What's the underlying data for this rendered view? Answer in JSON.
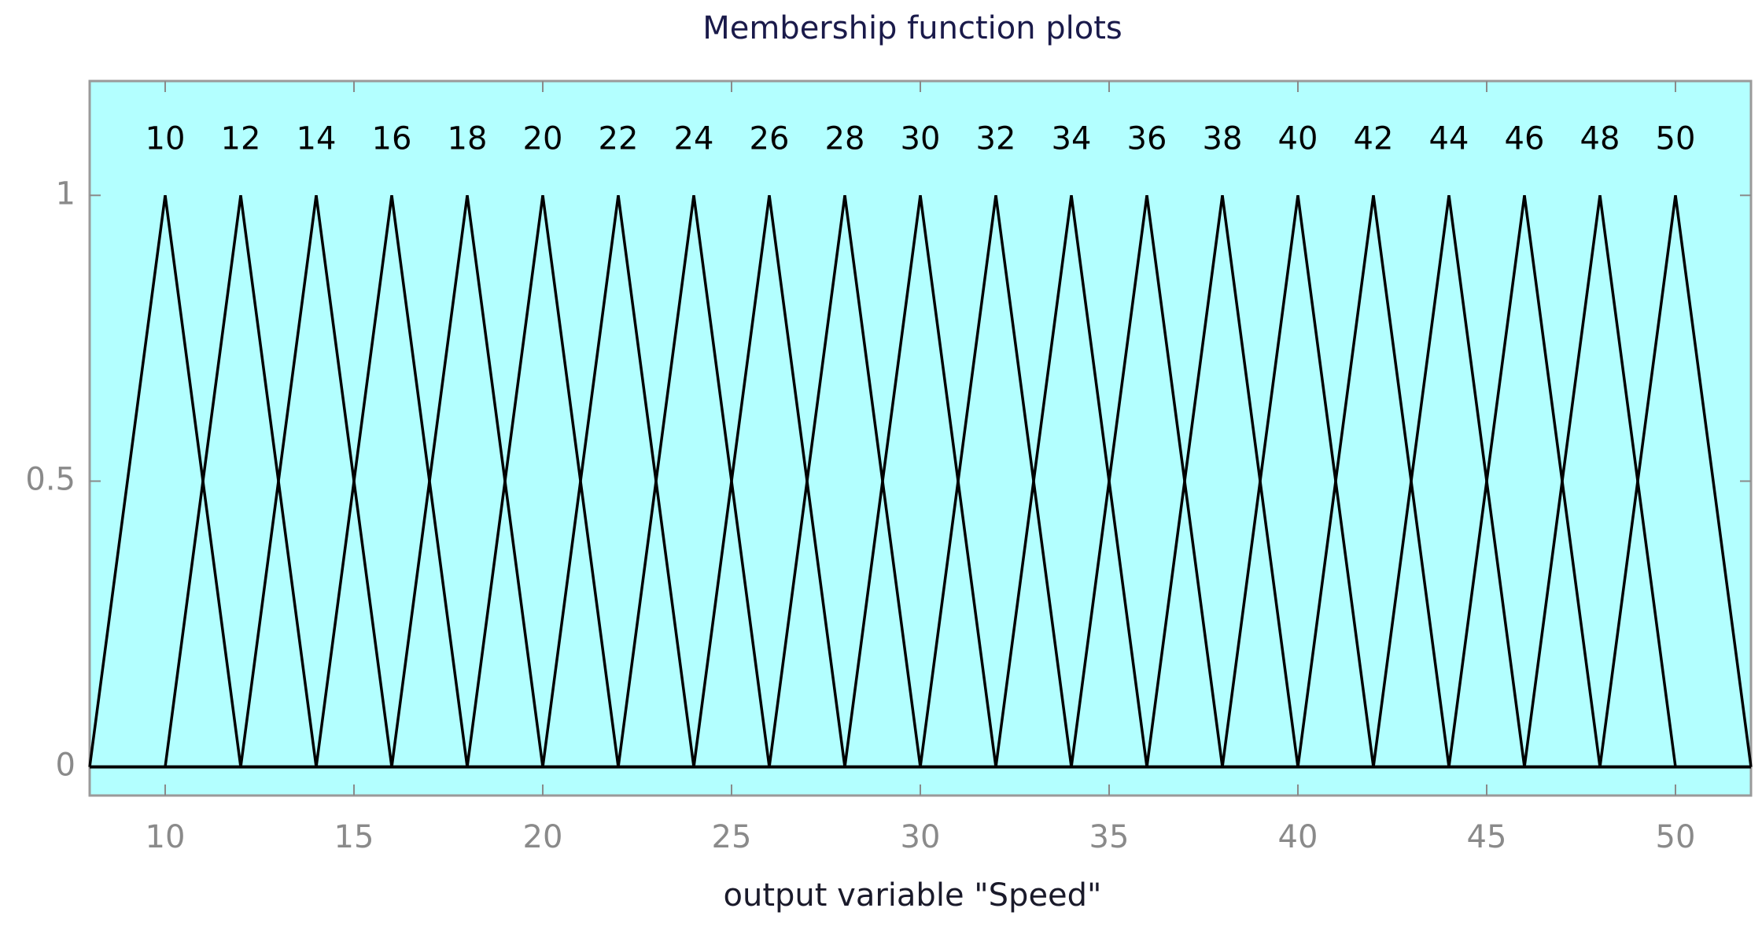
{
  "chart_data": {
    "type": "line",
    "title": "Membership function plots",
    "xlabel": "output variable \"Speed\"",
    "xlim": [
      8,
      52
    ],
    "ylim": [
      -0.05,
      1.2
    ],
    "xticks": [
      10,
      15,
      20,
      25,
      30,
      35,
      40,
      45,
      50
    ],
    "yticks": [
      0,
      0.5,
      1
    ],
    "grid": false,
    "background": "#b3ffff",
    "series": [
      {
        "name": "10",
        "color": "#000000",
        "x": [
          8,
          10,
          12
        ],
        "values": [
          0,
          1,
          0
        ]
      },
      {
        "name": "12",
        "color": "#000000",
        "x": [
          10,
          12,
          14
        ],
        "values": [
          0,
          1,
          0
        ]
      },
      {
        "name": "14",
        "color": "#000000",
        "x": [
          12,
          14,
          16
        ],
        "values": [
          0,
          1,
          0
        ]
      },
      {
        "name": "16",
        "color": "#000000",
        "x": [
          14,
          16,
          18
        ],
        "values": [
          0,
          1,
          0
        ]
      },
      {
        "name": "18",
        "color": "#000000",
        "x": [
          16,
          18,
          20
        ],
        "values": [
          0,
          1,
          0
        ]
      },
      {
        "name": "20",
        "color": "#000000",
        "x": [
          18,
          20,
          22
        ],
        "values": [
          0,
          1,
          0
        ]
      },
      {
        "name": "22",
        "color": "#000000",
        "x": [
          20,
          22,
          24
        ],
        "values": [
          0,
          1,
          0
        ]
      },
      {
        "name": "24",
        "color": "#000000",
        "x": [
          22,
          24,
          26
        ],
        "values": [
          0,
          1,
          0
        ]
      },
      {
        "name": "26",
        "color": "#000000",
        "x": [
          24,
          26,
          28
        ],
        "values": [
          0,
          1,
          0
        ]
      },
      {
        "name": "28",
        "color": "#000000",
        "x": [
          26,
          28,
          30
        ],
        "values": [
          0,
          1,
          0
        ]
      },
      {
        "name": "30",
        "color": "#000000",
        "x": [
          28,
          30,
          32
        ],
        "values": [
          0,
          1,
          0
        ]
      },
      {
        "name": "32",
        "color": "#000000",
        "x": [
          30,
          32,
          34
        ],
        "values": [
          0,
          1,
          0
        ]
      },
      {
        "name": "34",
        "color": "#000000",
        "x": [
          32,
          34,
          36
        ],
        "values": [
          0,
          1,
          0
        ]
      },
      {
        "name": "36",
        "color": "#000000",
        "x": [
          34,
          36,
          38
        ],
        "values": [
          0,
          1,
          0
        ]
      },
      {
        "name": "38",
        "color": "#000000",
        "x": [
          36,
          38,
          40
        ],
        "values": [
          0,
          1,
          0
        ]
      },
      {
        "name": "40",
        "color": "#000000",
        "x": [
          38,
          40,
          42
        ],
        "values": [
          0,
          1,
          0
        ]
      },
      {
        "name": "42",
        "color": "#000000",
        "x": [
          40,
          42,
          44
        ],
        "values": [
          0,
          1,
          0
        ]
      },
      {
        "name": "44",
        "color": "#000000",
        "x": [
          42,
          44,
          46
        ],
        "values": [
          0,
          1,
          0
        ]
      },
      {
        "name": "46",
        "color": "#000000",
        "x": [
          44,
          46,
          48
        ],
        "values": [
          0,
          1,
          0
        ]
      },
      {
        "name": "48",
        "color": "#000000",
        "x": [
          46,
          48,
          50
        ],
        "values": [
          0,
          1,
          0
        ]
      },
      {
        "name": "50",
        "color": "#000000",
        "x": [
          48,
          50,
          52
        ],
        "values": [
          0,
          1,
          0
        ]
      }
    ]
  }
}
